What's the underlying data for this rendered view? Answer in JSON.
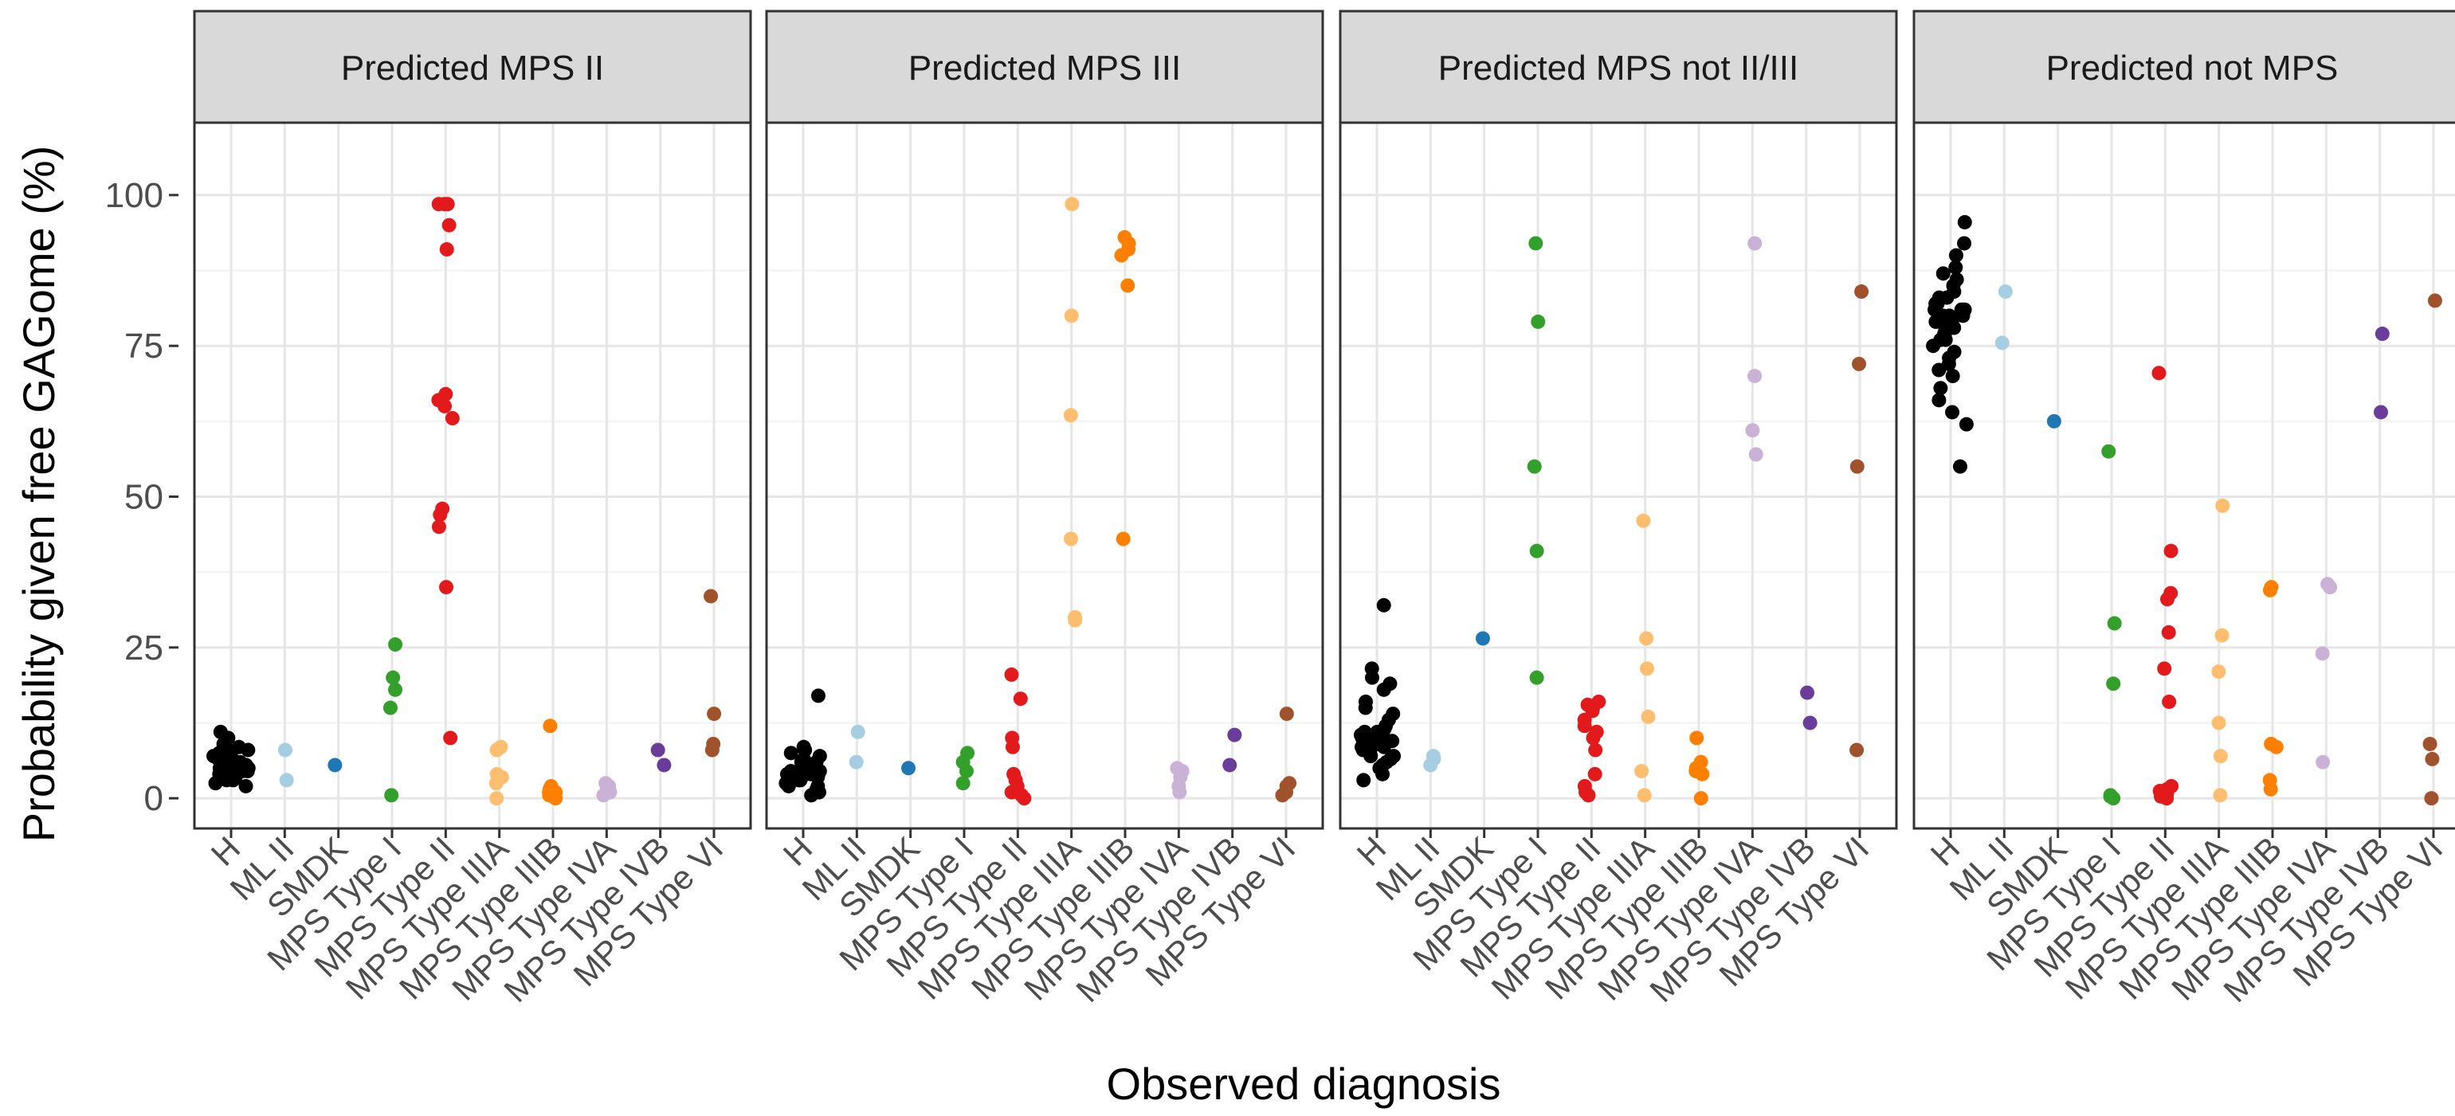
{
  "chart_data": {
    "type": "scatter",
    "title": "",
    "xlabel": "Observed diagnosis",
    "ylabel": "Probability given free GAGome (%)",
    "ylim": [
      -5,
      112
    ],
    "yticks": [
      0,
      25,
      50,
      75,
      100
    ],
    "grid": true,
    "legend": "none",
    "categories": [
      "H",
      "ML II",
      "SMDK",
      "MPS Type I",
      "MPS Type II",
      "MPS Type IIIA",
      "MPS Type IIIB",
      "MPS Type IVA",
      "MPS Type IVB",
      "MPS Type VI"
    ],
    "category_colors": {
      "H": "#000000",
      "ML II": "#a6cee3",
      "SMDK": "#1f78b4",
      "MPS Type I": "#33a02c",
      "MPS Type II": "#e31a1c",
      "MPS Type IIIA": "#fdbf6f",
      "MPS Type IIIB": "#ff7f00",
      "MPS Type IVA": "#cab2d6",
      "MPS Type IVB": "#6a3d9a",
      "MPS Type VI": "#a0522d"
    },
    "panels": [
      {
        "title": "Predicted MPS II",
        "series": {
          "H": [
            2,
            2.5,
            3,
            3,
            3.5,
            3.5,
            4,
            4,
            4,
            4.5,
            4.5,
            5,
            5,
            5,
            5,
            5.5,
            5.5,
            5.5,
            6,
            6,
            6,
            6,
            6.5,
            6.5,
            7,
            7,
            7,
            7.5,
            8,
            8,
            8.5,
            9,
            10,
            11
          ],
          "ML II": [
            3,
            8
          ],
          "SMDK": [
            5.5
          ],
          "MPS Type I": [
            0.5,
            15,
            18,
            20,
            25.5
          ],
          "MPS Type II": [
            10,
            35,
            45,
            47,
            48,
            63,
            65,
            66,
            67,
            91,
            95,
            98.5,
            98.5,
            98.5
          ],
          "MPS Type IIIA": [
            0,
            2.5,
            3.5,
            4,
            8,
            8.5
          ],
          "MPS Type IIIB": [
            0,
            0.5,
            1,
            1,
            1.5,
            2,
            12
          ],
          "MPS Type IVA": [
            0.5,
            1,
            1.5,
            2,
            2.5
          ],
          "MPS Type IVB": [
            5.5,
            8
          ],
          "MPS Type VI": [
            8,
            9,
            14,
            33.5
          ]
        }
      },
      {
        "title": "Predicted MPS III",
        "series": {
          "H": [
            0.5,
            1,
            1.5,
            2,
            2,
            2.5,
            3,
            3,
            3,
            3.5,
            3.5,
            4,
            4,
            4,
            4,
            4.5,
            4.5,
            5,
            5,
            5,
            5.5,
            5.5,
            6,
            6,
            6.5,
            7,
            7.5,
            8,
            8.5,
            17
          ],
          "ML II": [
            6,
            11
          ],
          "SMDK": [
            5
          ],
          "MPS Type I": [
            2.5,
            4.5,
            6,
            7.5
          ],
          "MPS Type II": [
            0,
            0.5,
            1,
            2,
            3,
            4,
            8.5,
            10,
            16.5,
            20.5
          ],
          "MPS Type IIIA": [
            29.5,
            30,
            43,
            63.5,
            80,
            98.5
          ],
          "MPS Type IIIB": [
            43,
            85,
            90,
            91,
            92,
            93
          ],
          "MPS Type IVA": [
            1,
            2,
            3.5,
            4.5,
            5
          ],
          "MPS Type IVB": [
            5.5,
            10.5
          ],
          "MPS Type VI": [
            0.5,
            1,
            2,
            2.5,
            14
          ]
        }
      },
      {
        "title": "Predicted MPS not II/III",
        "series": {
          "H": [
            3,
            4,
            5,
            5.5,
            6,
            6.5,
            7,
            7,
            7.5,
            8,
            8,
            8.5,
            8.5,
            9,
            9,
            9,
            9.5,
            9.5,
            10,
            10,
            10.5,
            10.5,
            11,
            11,
            11.5,
            12,
            13,
            14,
            15,
            16,
            18,
            19,
            20,
            21.5,
            32
          ],
          "ML II": [
            5.5,
            6.5,
            7
          ],
          "SMDK": [
            26.5
          ],
          "MPS Type I": [
            20,
            41,
            55,
            79,
            92
          ],
          "MPS Type II": [
            0.5,
            1,
            2,
            4,
            8,
            10,
            11,
            12,
            13,
            14.5,
            15,
            15.5,
            16
          ],
          "MPS Type IIIA": [
            0.5,
            4.5,
            13.5,
            21.5,
            26.5,
            46
          ],
          "MPS Type IIIB": [
            0,
            4,
            4.5,
            5,
            6,
            10
          ],
          "MPS Type IVA": [
            57,
            61,
            70,
            92
          ],
          "MPS Type IVB": [
            12.5,
            17.5
          ],
          "MPS Type VI": [
            8,
            55,
            72,
            84
          ]
        }
      },
      {
        "title": "Predicted not MPS",
        "series": {
          "H": [
            55,
            62,
            64,
            66,
            68,
            70,
            71,
            72,
            73,
            74,
            75,
            76,
            76,
            77,
            77,
            78,
            78,
            78,
            79,
            79,
            79,
            80,
            80,
            80,
            81,
            81,
            81,
            82,
            82,
            83,
            83,
            84,
            84,
            85,
            86,
            87,
            88,
            90,
            92,
            95.5
          ],
          "ML II": [
            75.5,
            84
          ],
          "SMDK": [
            62.5
          ],
          "MPS Type I": [
            0,
            0.3,
            0.5,
            19,
            29,
            57.5
          ],
          "MPS Type II": [
            0,
            0.3,
            0.5,
            0.8,
            1,
            1.2,
            1.5,
            2,
            16,
            21.5,
            27.5,
            33,
            34,
            41,
            70.5
          ],
          "MPS Type IIIA": [
            0.5,
            7,
            12.5,
            21,
            27,
            48.5
          ],
          "MPS Type IIIB": [
            1.5,
            3,
            8.5,
            9,
            34.5,
            35
          ],
          "MPS Type IVA": [
            6,
            24,
            35,
            35.5
          ],
          "MPS Type IVB": [
            64,
            77
          ],
          "MPS Type VI": [
            0,
            6.5,
            9,
            82.5
          ]
        }
      }
    ]
  }
}
